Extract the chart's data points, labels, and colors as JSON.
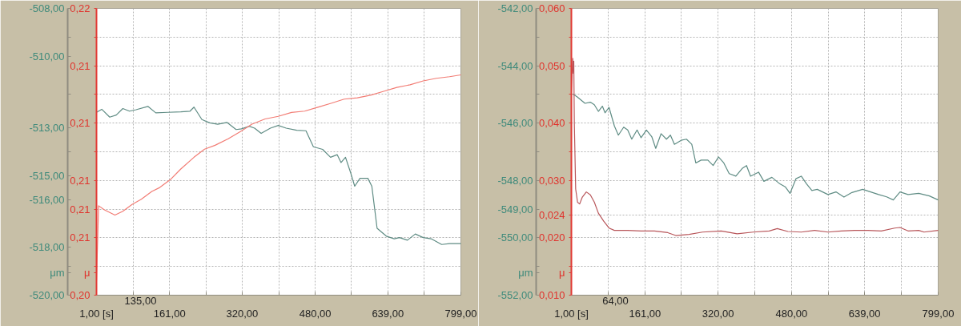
{
  "chart_data": [
    {
      "type": "line",
      "ylabel": "μm",
      "y2label": "μ",
      "xlim": [
        1,
        799
      ],
      "xticks": [
        {
          "value": 1,
          "label": "1,00 [s]"
        },
        {
          "value": 81,
          "label": null
        },
        {
          "value": 161,
          "label": "161,00"
        },
        {
          "value": 240.5,
          "label": null
        },
        {
          "value": 320,
          "label": "320,00"
        },
        {
          "value": 400,
          "label": null
        },
        {
          "value": 480,
          "label": "480,00"
        },
        {
          "value": 559.5,
          "label": null
        },
        {
          "value": 639,
          "label": "639,00"
        },
        {
          "value": 719,
          "label": null
        },
        {
          "value": 799,
          "label": "799,00"
        }
      ],
      "ylim": [
        -520,
        -508
      ],
      "yticks": [
        {
          "value": -520,
          "label": "-520,00"
        },
        {
          "value": -518.8,
          "label": null
        },
        {
          "value": -518,
          "label": "-518,00"
        },
        {
          "value": -516,
          "label": "-516,00"
        },
        {
          "value": -515,
          "label": "-515,00"
        },
        {
          "value": -514,
          "label": null
        },
        {
          "value": -513,
          "label": "-513,00"
        },
        {
          "value": -511.6,
          "label": null
        },
        {
          "value": -510,
          "label": "-510,00"
        },
        {
          "value": -509.2,
          "label": null
        },
        {
          "value": -508,
          "label": "-508,00"
        }
      ],
      "y2lim": [
        0.2045,
        0.2155
      ],
      "y2ticks": [
        {
          "value": 0.2045,
          "label": "0,20"
        },
        {
          "value": 0.2056,
          "label": null
        },
        {
          "value": 0.2067,
          "label": "0,21"
        },
        {
          "value": 0.2078,
          "label": "0,21"
        },
        {
          "value": 0.2089,
          "label": "0,21"
        },
        {
          "value": 0.21,
          "label": null
        },
        {
          "value": 0.2111,
          "label": "0,21"
        },
        {
          "value": 0.2122,
          "label": null
        },
        {
          "value": 0.2133,
          "label": "0,21"
        },
        {
          "value": 0.2144,
          "label": null
        },
        {
          "value": 0.2155,
          "label": "0,22"
        }
      ],
      "grid": true,
      "annotations": [
        "135,00"
      ],
      "series": [
        {
          "color": "#5f8c84",
          "x": [
            1,
            12.5,
            29.9,
            44.3,
            58.7,
            73.1,
            87.6,
            113.5,
            130.8,
            156.8,
            185.6,
            205.8,
            214.5,
            231.8,
            249.1,
            266.4,
            286.6,
            306.8,
            318.4,
            335.7,
            347.2,
            361.6,
            381.8,
            399.1,
            416.4,
            439.5,
            459.7,
            476,
            496.2,
            513.5,
            528,
            536.6,
            546.3,
            557.8,
            566.5,
            578,
            595.3,
            604,
            615.5,
            635.7,
            653,
            664.6,
            681.9,
            699.2,
            716.5,
            733.8,
            756.9,
            774.2,
            799
          ],
          "values": [
            -512.35,
            -512.22,
            -512.55,
            -512.46,
            -512.19,
            -512.3,
            -512.24,
            -512.1,
            -512.37,
            -512.35,
            -512.33,
            -512.3,
            -512.13,
            -512.65,
            -512.79,
            -512.85,
            -512.77,
            -513.07,
            -513.04,
            -512.93,
            -513.01,
            -513.23,
            -513.01,
            -512.9,
            -513.01,
            -513.1,
            -513.12,
            -513.79,
            -513.9,
            -514.23,
            -514.12,
            -514.45,
            -514.23,
            -514.89,
            -515.44,
            -515.11,
            -515.11,
            -515.44,
            -517.2,
            -517.53,
            -517.64,
            -517.59,
            -517.7,
            -517.44,
            -517.59,
            -517.64,
            -517.88,
            -517.84,
            -517.84
          ]
        },
        {
          "color": "#f27c74",
          "axis": "y2",
          "x": [
            1,
            5.6,
            18.3,
            41.4,
            58.7,
            78.9,
            99.1,
            122.2,
            139.5,
            162.6,
            185.6,
            214.5,
            237.6,
            260.7,
            289.5,
            318.4,
            341.4,
            370.3,
            399.1,
            428,
            456.8,
            485.7,
            514.5,
            543.4,
            572.2,
            601.1,
            629.9,
            658.8,
            687.6,
            716.5,
            745.3,
            774.2,
            799
          ],
          "values": [
            0.20505,
            0.20793,
            0.20777,
            0.20757,
            0.20772,
            0.20798,
            0.20818,
            0.20848,
            0.20863,
            0.20893,
            0.20934,
            0.20979,
            0.2101,
            0.21025,
            0.2105,
            0.2108,
            0.21106,
            0.21126,
            0.21136,
            0.21151,
            0.21156,
            0.21171,
            0.21186,
            0.21202,
            0.21207,
            0.21217,
            0.21232,
            0.21247,
            0.21257,
            0.21272,
            0.21282,
            0.21288,
            0.21295
          ]
        }
      ]
    },
    {
      "type": "line",
      "ylabel": "μm",
      "y2label": "μ",
      "xlim": [
        1,
        799
      ],
      "xticks": [
        {
          "value": 1,
          "label": "1,00 [s]"
        },
        {
          "value": 81,
          "label": null
        },
        {
          "value": 161,
          "label": "161,00"
        },
        {
          "value": 240.5,
          "label": null
        },
        {
          "value": 320,
          "label": "320,00"
        },
        {
          "value": 400,
          "label": null
        },
        {
          "value": 480,
          "label": "480,00"
        },
        {
          "value": 559.5,
          "label": null
        },
        {
          "value": 639,
          "label": "639,00"
        },
        {
          "value": 719,
          "label": null
        },
        {
          "value": 799,
          "label": "799,00"
        }
      ],
      "ylim": [
        -552,
        -542
      ],
      "yticks": [
        {
          "value": -552,
          "label": "-552,00"
        },
        {
          "value": -551,
          "label": null
        },
        {
          "value": -550,
          "label": "-550,00"
        },
        {
          "value": -549,
          "label": "-549,00"
        },
        {
          "value": -548,
          "label": "-548,00"
        },
        {
          "value": -547,
          "label": null
        },
        {
          "value": -546,
          "label": "-546,00"
        },
        {
          "value": -545,
          "label": null
        },
        {
          "value": -544,
          "label": "-544,00"
        },
        {
          "value": -543,
          "label": null
        },
        {
          "value": -542,
          "label": "-542,00"
        }
      ],
      "y2lim": [
        0.01,
        0.06
      ],
      "y2ticks": [
        {
          "value": 0.01,
          "label": "0,010"
        },
        {
          "value": 0.015,
          "label": null
        },
        {
          "value": 0.02,
          "label": "0,020"
        },
        {
          "value": 0.024,
          "label": "0,024"
        },
        {
          "value": 0.03,
          "label": "0,030"
        },
        {
          "value": 0.035,
          "label": null
        },
        {
          "value": 0.04,
          "label": "0,040"
        },
        {
          "value": 0.045,
          "label": null
        },
        {
          "value": 0.05,
          "label": "0,050"
        },
        {
          "value": 0.055,
          "label": null
        },
        {
          "value": 0.06,
          "label": "0,060"
        }
      ],
      "grid": true,
      "annotations": [
        "64,00"
      ],
      "series": [
        {
          "color": "#5f8c84",
          "x": [
            4.5,
            13.2,
            30.6,
            42.2,
            50.9,
            59.7,
            68.4,
            74.2,
            82.9,
            94.5,
            103.2,
            114.8,
            123.5,
            132.3,
            143.9,
            152.6,
            164.2,
            175.8,
            184.5,
            196.1,
            207.8,
            216.5,
            225.2,
            239.7,
            251.3,
            262.9,
            271.7,
            283.3,
            297.8,
            309.4,
            321,
            332.6,
            344.3,
            358.8,
            373.3,
            382,
            390.8,
            408.2,
            419.8,
            437.2,
            454.6,
            466.2,
            476.7,
            489.5,
            501.1,
            512.7,
            524.3,
            535.9,
            559.2,
            576.6,
            594,
            611.4,
            634.7,
            652.1,
            669.5,
            686.9,
            701.4,
            716,
            733.4,
            756.6,
            779.9,
            799
          ],
          "values": [
            -544.99,
            -545.08,
            -545.31,
            -545.27,
            -545.36,
            -545.59,
            -545.41,
            -545.64,
            -545.45,
            -546.1,
            -546.42,
            -546.14,
            -546.24,
            -546.56,
            -546.24,
            -546.51,
            -546.24,
            -546.47,
            -546.88,
            -546.37,
            -546.56,
            -546.42,
            -546.74,
            -546.6,
            -546.56,
            -546.74,
            -547.39,
            -547.29,
            -547.29,
            -547.48,
            -547.18,
            -547.39,
            -547.76,
            -547.85,
            -547.57,
            -547.48,
            -547.85,
            -547.71,
            -548.03,
            -547.89,
            -548.12,
            -548.22,
            -548.45,
            -547.94,
            -547.85,
            -548.12,
            -548.35,
            -548.31,
            -548.49,
            -548.4,
            -548.58,
            -548.42,
            -548.31,
            -548.4,
            -548.49,
            -548.57,
            -548.68,
            -548.4,
            -548.49,
            -548.45,
            -548.54,
            -548.68
          ]
        },
        {
          "color": "#b8565a",
          "axis": "y2",
          "x": [
            1,
            3.9,
            5.1,
            6.2,
            7.4,
            10.3,
            14.4,
            19,
            24.8,
            33.5,
            42.2,
            51,
            59.7,
            71.3,
            82.9,
            94.5,
            123.5,
            152.6,
            181.6,
            210.7,
            228.1,
            257.1,
            286.2,
            326.8,
            361.7,
            396.5,
            431.4,
            448.8,
            472,
            501.1,
            530.1,
            559.2,
            588.2,
            617.2,
            646.3,
            675.3,
            704.4,
            716,
            733.4,
            756.6,
            768.2,
            799
          ],
          "values": [
            0.0455,
            0.0513,
            0.0487,
            0.0508,
            0.04,
            0.0285,
            0.0262,
            0.0259,
            0.0271,
            0.028,
            0.0275,
            0.0262,
            0.0243,
            0.0229,
            0.0217,
            0.0213,
            0.0213,
            0.0212,
            0.0212,
            0.0209,
            0.0204,
            0.0206,
            0.021,
            0.0212,
            0.0207,
            0.021,
            0.0212,
            0.0216,
            0.0211,
            0.021,
            0.0213,
            0.021,
            0.0212,
            0.0213,
            0.0213,
            0.0212,
            0.0217,
            0.0218,
            0.0212,
            0.0213,
            0.021,
            0.0213
          ]
        }
      ]
    }
  ]
}
